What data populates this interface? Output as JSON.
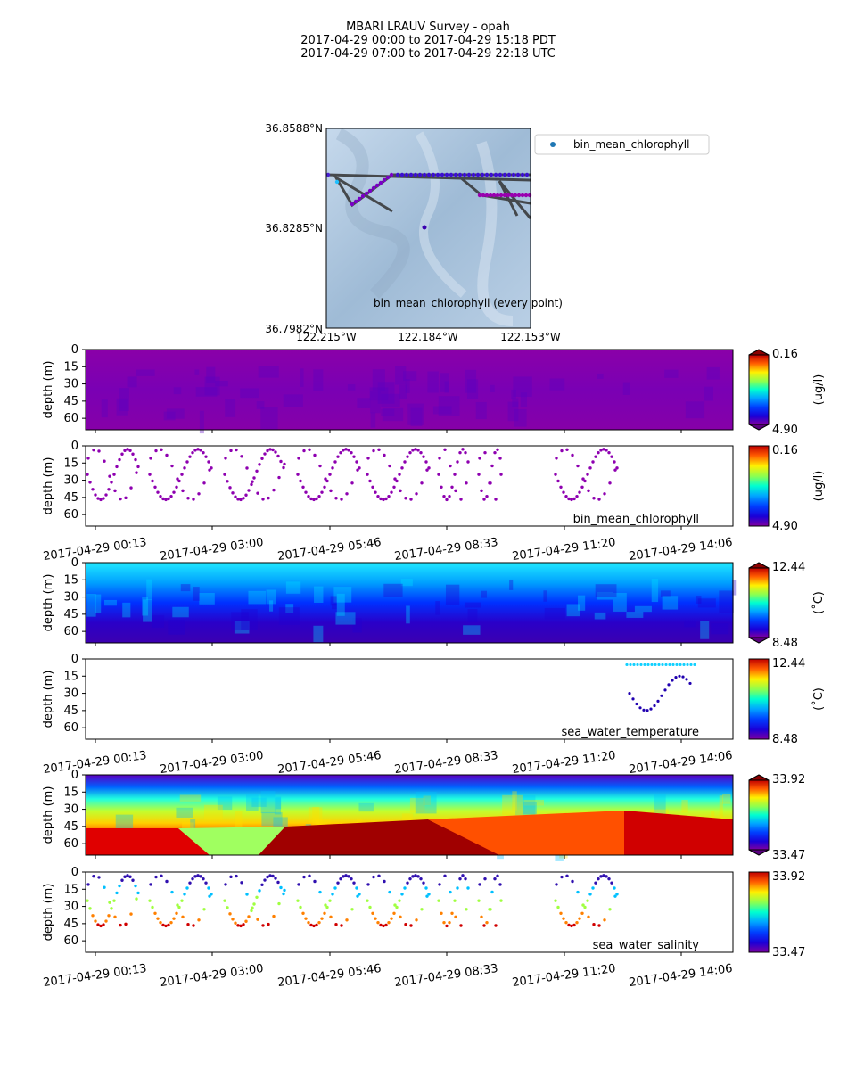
{
  "title": {
    "line1": "MBARI LRAUV Survey - opah",
    "line2": "2017-04-29 00:00  to  2017-04-29 15:18 PDT",
    "line3": "2017-04-29 07:00  to  2017-04-29 22:18 UTC"
  },
  "map": {
    "lat_labels": [
      "36.8588°N",
      "36.8285°N",
      "36.7982°N"
    ],
    "lon_labels": [
      "122.215°W",
      "122.184°W",
      "122.153°W"
    ],
    "lat_range": [
      36.7982,
      36.8588
    ],
    "lon_range": [
      -122.215,
      -122.153
    ],
    "legend_label": "bin_mean_chlorophyll",
    "caption": "bin_mean_chlorophyll (every point)",
    "colors": {
      "ocean": "#a9c4de",
      "track": "#333333",
      "points": "#5b00c8"
    }
  },
  "time_ticks": [
    "2017-04-29 00:13",
    "2017-04-29 03:00",
    "2017-04-29 05:46",
    "2017-04-29 08:33",
    "2017-04-29 11:20",
    "2017-04-29 14:06"
  ],
  "depth_ticks": [
    "0",
    "15",
    "30",
    "45",
    "60"
  ],
  "depth_label": "depth (m)",
  "chart_data": [
    {
      "type": "heatmap",
      "variable": "bin_mean_chlorophyll",
      "caption": "",
      "ylabel": "depth (m)",
      "ylim": [
        0,
        70
      ],
      "colorbar": {
        "min": "0.16",
        "max": "4.90",
        "unit": "(ug/l)",
        "extend": true
      },
      "values_description_none": true
    },
    {
      "type": "scatter",
      "variable": "bin_mean_chlorophyll",
      "caption": "bin_mean_chlorophyll",
      "ylabel": "depth (m)",
      "ylim": [
        0,
        70
      ],
      "colorbar": {
        "min": "0.16",
        "max": "4.90",
        "unit": "(ug/l)",
        "extend": false
      }
    },
    {
      "type": "heatmap",
      "variable": "sea_water_temperature",
      "caption": "",
      "ylabel": "depth (m)",
      "ylim": [
        0,
        70
      ],
      "colorbar": {
        "min": "12.44",
        "max": "8.48",
        "unit": "(˚C)",
        "extend": true
      }
    },
    {
      "type": "scatter",
      "variable": "sea_water_temperature",
      "caption": "sea_water_temperature",
      "ylabel": "depth (m)",
      "ylim": [
        0,
        70
      ],
      "colorbar": {
        "min": "12.44",
        "max": "8.48",
        "unit": "(˚C)",
        "extend": false
      }
    },
    {
      "type": "heatmap",
      "variable": "sea_water_salinity",
      "caption": "",
      "ylabel": "depth (m)",
      "ylim": [
        0,
        70
      ],
      "colorbar": {
        "min": "33.92",
        "max": "33.47",
        "unit": "",
        "extend": true
      }
    },
    {
      "type": "scatter",
      "variable": "sea_water_salinity",
      "caption": "sea_water_salinity",
      "ylabel": "depth (m)",
      "ylim": [
        0,
        70
      ],
      "colorbar": {
        "min": "33.92",
        "max": "33.47",
        "unit": "",
        "extend": false
      }
    }
  ]
}
